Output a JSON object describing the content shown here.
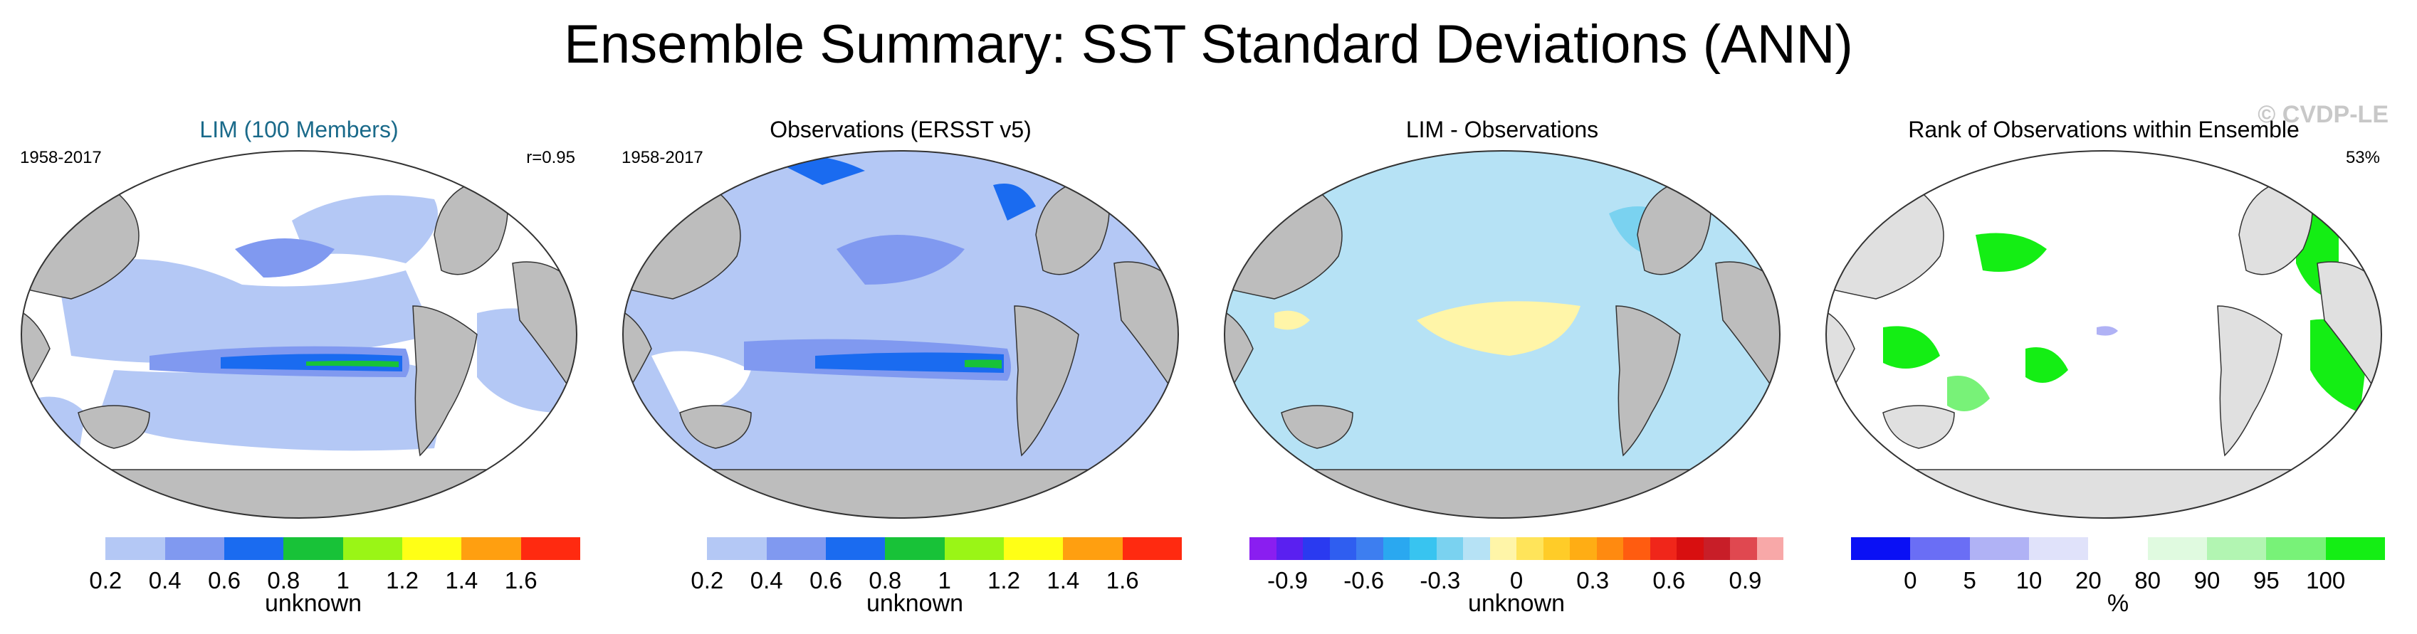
{
  "page": {
    "title": "Ensemble Summary: SST Standard Deviations (ANN)"
  },
  "panels": [
    {
      "title": "LIM (100 Members)",
      "period": "1958-2017",
      "stat": "r=0.95",
      "colorbar": {
        "colors": [
          "#ffffff",
          "#b4c8f5",
          "#8099f0",
          "#1a6bf0",
          "#18c238",
          "#9af516",
          "#ffff16",
          "#ff9f10",
          "#ff2a10"
        ],
        "ticks": [
          "0.2",
          "0.4",
          "0.6",
          "0.8",
          "1",
          "1.2",
          "1.4",
          "1.6"
        ],
        "label": "unknown"
      }
    },
    {
      "title": "Observations (ERSST v5)",
      "period": "1958-2017",
      "colorbar": {
        "colors": [
          "#ffffff",
          "#b4c8f5",
          "#8099f0",
          "#1a6bf0",
          "#18c238",
          "#9af516",
          "#ffff16",
          "#ff9f10",
          "#ff2a10"
        ],
        "ticks": [
          "0.2",
          "0.4",
          "0.6",
          "0.8",
          "1",
          "1.2",
          "1.4",
          "1.6"
        ],
        "label": "unknown"
      }
    },
    {
      "title": "LIM - Observations",
      "colorbar": {
        "colors": [
          "#8a1ef0",
          "#5a20f0",
          "#2a3af0",
          "#2f5ef0",
          "#3d7ef0",
          "#2aa8f0",
          "#38c4f0",
          "#7ad2f0",
          "#b6e2f5",
          "#fff5a8",
          "#ffe45a",
          "#ffcc28",
          "#ffad14",
          "#ff8a10",
          "#ff5c10",
          "#f0261a",
          "#d80f10",
          "#c81e28",
          "#e04850",
          "#f8a8a8"
        ],
        "ticks": [
          "-0.9",
          "-0.6",
          "-0.3",
          "0",
          "0.3",
          "0.6",
          "0.9"
        ],
        "label": "unknown"
      }
    },
    {
      "title": "Rank of Observations within Ensemble",
      "stat": "53%",
      "watermark": "© CVDP-LE",
      "colorbar": {
        "colors": [
          "#0a10f5",
          "#6a6ef5",
          "#b0b2f5",
          "#e0e2fa",
          "#ffffff",
          "#e0fae0",
          "#b2f5b2",
          "#78f278",
          "#14ee14"
        ],
        "ticks": [
          "0",
          "5",
          "10",
          "20",
          "80",
          "90",
          "95",
          "100"
        ],
        "label": "%"
      }
    }
  ]
}
